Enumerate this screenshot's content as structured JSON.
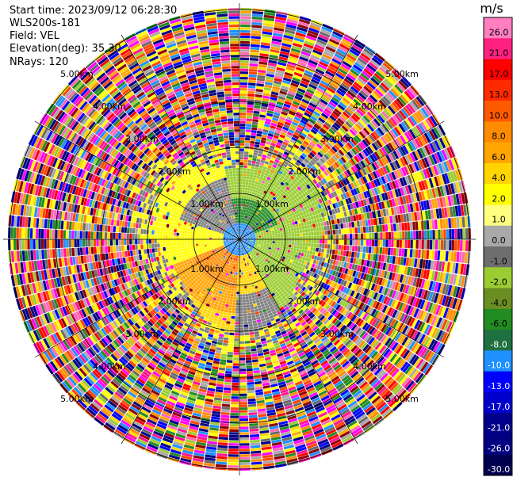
{
  "info": {
    "start_time": "Start time: 2023/09/12 06:28:30",
    "instrument": "WLS200s-181",
    "field": "Field: VEL",
    "elevation": "Elevation(deg): 35.30",
    "nrays": "NRays: 120"
  },
  "chart_data": {
    "type": "heatmap",
    "projection": "polar",
    "field": "VEL",
    "elevation_deg": 35.3,
    "n_rays": 120,
    "range_rings": [
      {
        "label": "1.00km"
      },
      {
        "label": "2.00km"
      },
      {
        "label": "3.00km"
      },
      {
        "label": "4.00km"
      },
      {
        "label": "5.00km"
      }
    ],
    "colorbar": {
      "unit": "m/s",
      "ticks": [
        "26.0",
        "21.0",
        "17.0",
        "13.0",
        "10.0",
        "8.0",
        "6.0",
        "4.0",
        "2.0",
        "1.0",
        "0.0",
        "-1.0",
        "-2.0",
        "-4.0",
        "-6.0",
        "-8.0",
        "-10.0",
        "-13.0",
        "-17.0",
        "-21.0",
        "-26.0",
        "-30.0"
      ],
      "colors": [
        "#ff7fc0",
        "#ff2080",
        "#ff0000",
        "#ff2a00",
        "#ff5a00",
        "#ff8c00",
        "#ffa500",
        "#ffd400",
        "#ffff00",
        "#ffff80",
        "#a9a9a9",
        "#6e6e6e",
        "#9acd32",
        "#6b8e23",
        "#228b22",
        "#1e7040",
        "#1e90ff",
        "#0000ff",
        "#0000cd",
        "#00008b",
        "#000080",
        "#000050"
      ]
    }
  }
}
